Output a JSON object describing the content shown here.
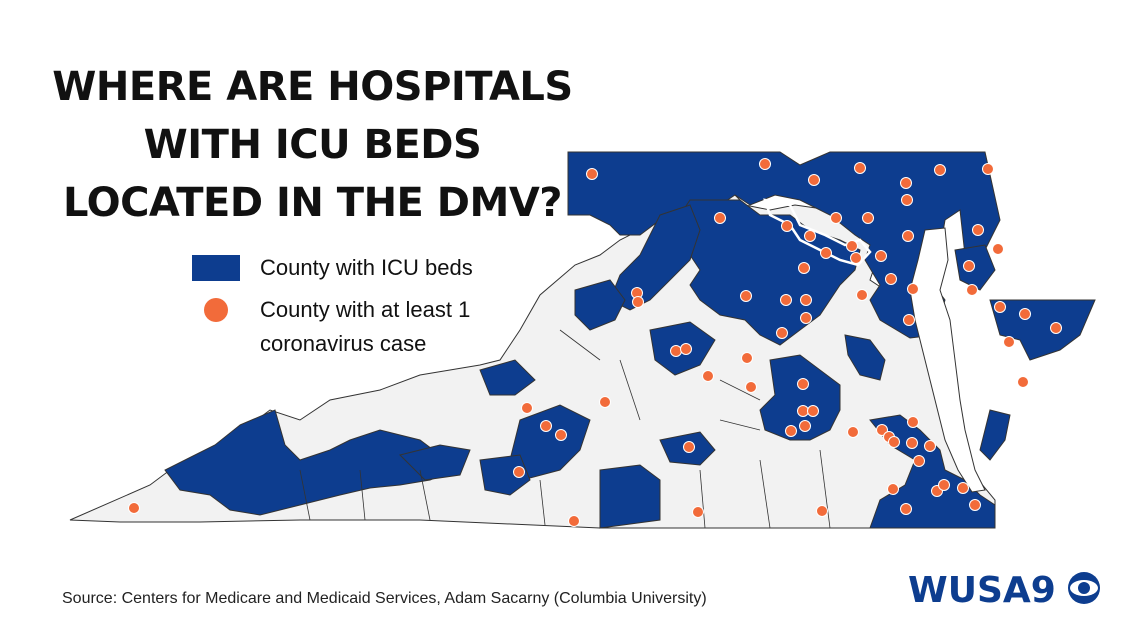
{
  "title_lines": [
    "WHERE ARE HOSPITALS",
    "WITH ICU BEDS",
    "LOCATED IN THE DMV?"
  ],
  "legend": {
    "icu_label": "County with ICU beds",
    "case_label_line1": "County with at least 1",
    "case_label_line2": "coronavirus case"
  },
  "source": "Source: Centers for Medicare and Medicaid Services, Adam Sacarny (Columbia University)",
  "logo": {
    "text": "WUSA9",
    "network": "CBS"
  },
  "colors": {
    "icu": "#0d3d8f",
    "case": "#f26b3a",
    "no_icu": "#f2f2f2",
    "border": "#333333",
    "dc_outline": "#ffffff"
  }
}
